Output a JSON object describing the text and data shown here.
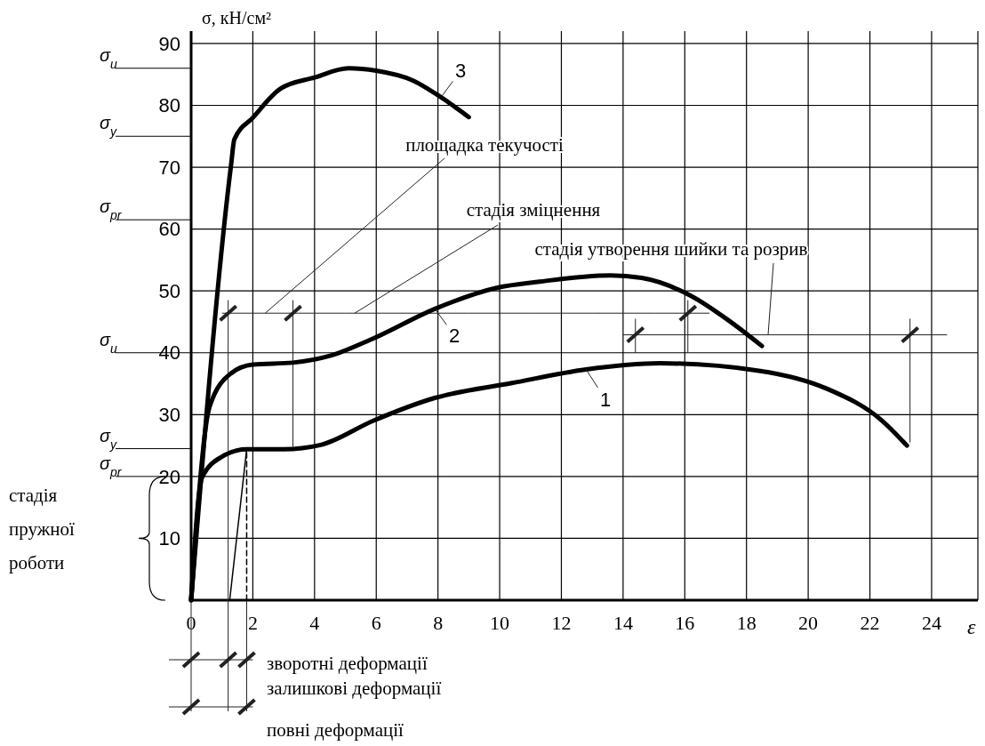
{
  "chart_data": {
    "type": "line",
    "ylabel": "σ, кН/см²",
    "xlabel": "ε",
    "xlim": [
      0,
      25.5
    ],
    "ylim": [
      0,
      92
    ],
    "xticks": [
      0,
      2,
      4,
      6,
      8,
      10,
      12,
      14,
      16,
      18,
      20,
      22,
      24
    ],
    "yticks": [
      10,
      20,
      30,
      40,
      50,
      60,
      70,
      80,
      90
    ],
    "grid": true,
    "marker": "none",
    "series": [
      {
        "color": "#000000",
        "x": [
          0,
          0.35,
          1.0,
          1.8,
          3.0,
          4.2,
          5.9,
          7.9,
          10.4,
          12.8,
          15.2,
          18.4,
          20.6,
          22.4,
          23.2
        ],
        "values": [
          0,
          19.8,
          23.2,
          24.4,
          24.4,
          25.1,
          29,
          32.7,
          35.1,
          37.3,
          38.3,
          37.1,
          34.2,
          29,
          25
        ]
      },
      {
        "color": "#000000",
        "x": [
          0,
          0.6,
          1.3,
          2.0,
          3.3,
          4.5,
          5.9,
          7.9,
          9.9,
          11.3,
          13.6,
          14.6,
          16.2,
          17.4,
          18.5
        ],
        "values": [
          0,
          31.3,
          36.7,
          38.1,
          38.4,
          39.5,
          42.3,
          47.1,
          50.5,
          51.5,
          52.5,
          52.1,
          49.2,
          45.3,
          41.1
        ]
      },
      {
        "color": "#000000",
        "x": [
          0,
          1.3,
          1.4,
          2.0,
          2.9,
          4.0,
          5.1,
          6.0,
          7.2,
          8.1,
          9.0
        ],
        "values": [
          0,
          70.6,
          74.5,
          78,
          82.7,
          84.5,
          86,
          85.6,
          84,
          81.3,
          78.1
        ]
      },
      {
        "color": "#000000",
        "x": [
          1.25,
          1.8
        ],
        "values": [
          0,
          24.4
        ]
      },
      {
        "color": "#000000",
        "x": [
          1.8,
          1.8
        ],
        "values": [
          0,
          24.4
        ],
        "line_style": "dashed"
      }
    ],
    "ref_lines": [
      {
        "axis": "y",
        "value": 86,
        "label": "σ$_{u}$"
      },
      {
        "axis": "y",
        "value": 75,
        "label": "σ$_{y}$"
      },
      {
        "axis": "y",
        "value": 61.5,
        "label": "σ$_{pr}$"
      },
      {
        "axis": "y",
        "value": 40,
        "label": "σ$_{u}$"
      },
      {
        "axis": "y",
        "value": 24.5,
        "label": "σ$_{y}$"
      },
      {
        "axis": "y",
        "value": 20,
        "label": "σ$_{pr}$"
      }
    ],
    "annotations": [
      "площадка текучості",
      "стадія зміцнення",
      "стадія утворення шийки та розрив",
      "стадія пружної роботи",
      "зворотні деформації",
      "залишкові деформації",
      "повні деформації",
      {
        "text": "1",
        "x": 12.8,
        "y": 37.3
      },
      {
        "text": "2",
        "x": 7.9,
        "y": 47.1
      },
      {
        "text": "3",
        "x": 8.1,
        "y": 81.3
      }
    ]
  }
}
